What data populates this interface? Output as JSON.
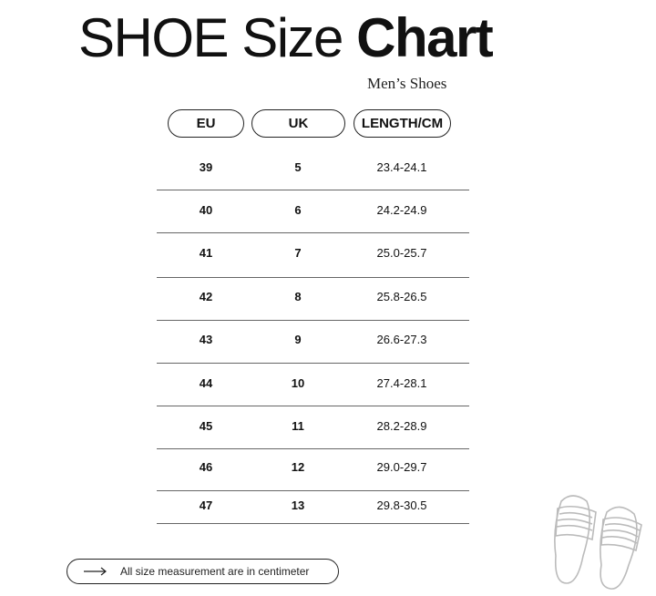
{
  "title": {
    "light": "SHOE Size",
    "bold": "Chart"
  },
  "subtitle": "Men’s Shoes",
  "headers": [
    "EU",
    "UK",
    "LENGTH/CM"
  ],
  "rows": [
    [
      "39",
      "5",
      "23.4-24.1"
    ],
    [
      "40",
      "6",
      "24.2-24.9"
    ],
    [
      "41",
      "7",
      "25.0-25.7"
    ],
    [
      "42",
      "8",
      "25.8-26.5"
    ],
    [
      "43",
      "9",
      "26.6-27.3"
    ],
    [
      "44",
      "10",
      "27.4-28.1"
    ],
    [
      "45",
      "11",
      "28.2-28.9"
    ],
    [
      "46",
      "12",
      "29.0-29.7"
    ],
    [
      "47",
      "13",
      "29.8-30.5"
    ]
  ],
  "note": {
    "icon": "arrow-right-icon",
    "text": "All size measurement are in centimeter"
  },
  "illustration": "slippers-icon"
}
